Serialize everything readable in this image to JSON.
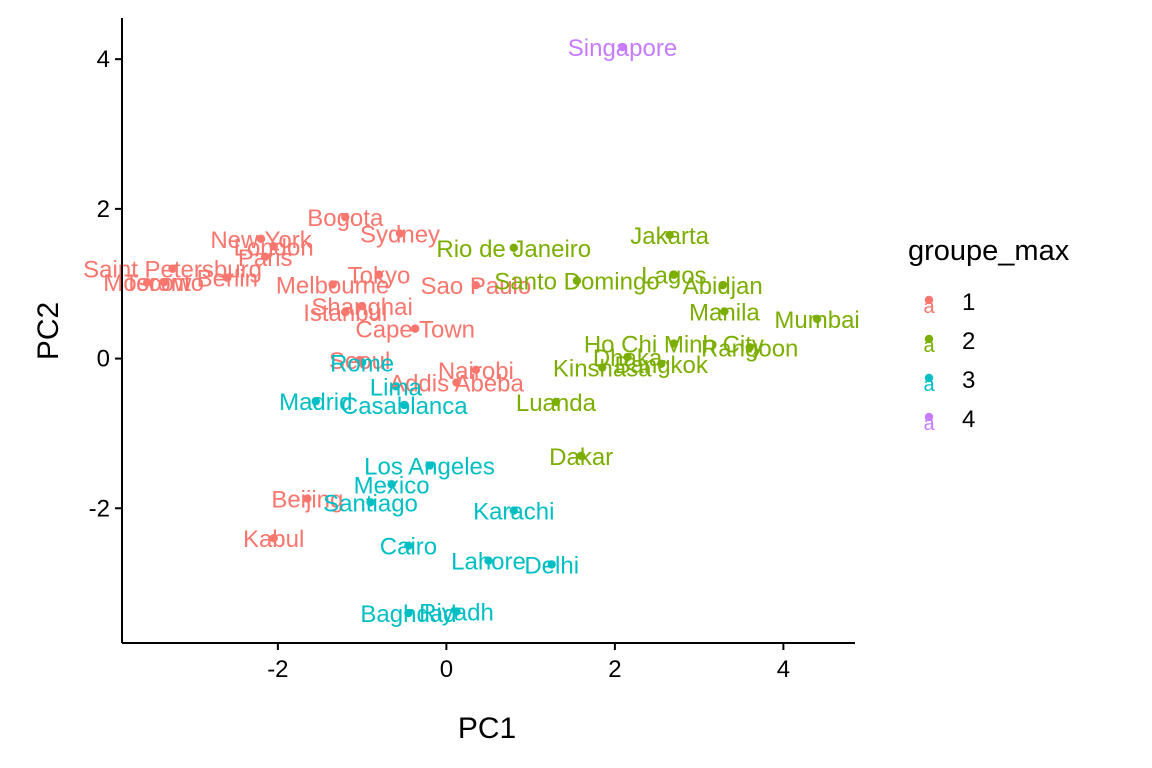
{
  "chart_data": {
    "type": "scatter",
    "xlabel": "PC1",
    "ylabel": "PC2",
    "xlim": [
      -3.85,
      4.85
    ],
    "ylim": [
      -3.8,
      4.55
    ],
    "xticks": [
      -2,
      0,
      2,
      4
    ],
    "yticks": [
      -2,
      0,
      2,
      4
    ],
    "xtick_labels": [
      "-2",
      "0",
      "2",
      "4"
    ],
    "ytick_labels": [
      "-2",
      "0",
      "2",
      "4"
    ],
    "grid": false,
    "legend_position": "right",
    "legend": {
      "title": "groupe_max",
      "entries": [
        {
          "group": "1",
          "color": "#F8766D"
        },
        {
          "group": "2",
          "color": "#7CAE00"
        },
        {
          "group": "3",
          "color": "#00BFC4"
        },
        {
          "group": "4",
          "color": "#C77CFF"
        }
      ]
    },
    "points": [
      {
        "label": "Singapore",
        "x": 2.09,
        "y": 4.16,
        "group": "4"
      },
      {
        "label": "Bogota",
        "x": -1.2,
        "y": 1.89,
        "group": "1"
      },
      {
        "label": "Sydney",
        "x": -0.55,
        "y": 1.67,
        "group": "1"
      },
      {
        "label": "New York",
        "x": -2.2,
        "y": 1.6,
        "group": "1"
      },
      {
        "label": "London",
        "x": -2.05,
        "y": 1.5,
        "group": "1"
      },
      {
        "label": "Paris",
        "x": -2.15,
        "y": 1.36,
        "group": "1"
      },
      {
        "label": "Saint Petersburg",
        "x": -3.25,
        "y": 1.2,
        "group": "1"
      },
      {
        "label": "Moscow",
        "x": -3.55,
        "y": 1.02,
        "group": "1"
      },
      {
        "label": "Toronto",
        "x": -3.35,
        "y": 1.02,
        "group": "1"
      },
      {
        "label": "Berlin",
        "x": -2.6,
        "y": 1.08,
        "group": "1"
      },
      {
        "label": "Tokyo",
        "x": -0.8,
        "y": 1.12,
        "group": "1"
      },
      {
        "label": "Melbourne",
        "x": -1.35,
        "y": 0.99,
        "group": "1"
      },
      {
        "label": "Sao Paulo",
        "x": 0.35,
        "y": 0.98,
        "group": "1"
      },
      {
        "label": "Shanghai",
        "x": -1.0,
        "y": 0.7,
        "group": "1"
      },
      {
        "label": "Istanbul",
        "x": -1.2,
        "y": 0.62,
        "group": "1"
      },
      {
        "label": "Cape Town",
        "x": -0.37,
        "y": 0.4,
        "group": "1"
      },
      {
        "label": "Seoul",
        "x": -1.03,
        "y": -0.02,
        "group": "1"
      },
      {
        "label": "Nairobi",
        "x": 0.35,
        "y": -0.15,
        "group": "1"
      },
      {
        "label": "Addis Abeba",
        "x": 0.12,
        "y": -0.32,
        "group": "1"
      },
      {
        "label": "Beijing",
        "x": -1.65,
        "y": -1.87,
        "group": "1"
      },
      {
        "label": "Kabul",
        "x": -2.05,
        "y": -2.4,
        "group": "1"
      },
      {
        "label": "Rio de Janeiro",
        "x": 0.8,
        "y": 1.48,
        "group": "2"
      },
      {
        "label": "Jakarta",
        "x": 2.65,
        "y": 1.65,
        "group": "2"
      },
      {
        "label": "Santo Domingo",
        "x": 1.55,
        "y": 1.04,
        "group": "2"
      },
      {
        "label": "Lagos",
        "x": 2.7,
        "y": 1.12,
        "group": "2"
      },
      {
        "label": "Abidjan",
        "x": 3.28,
        "y": 0.98,
        "group": "2"
      },
      {
        "label": "Manila",
        "x": 3.3,
        "y": 0.63,
        "group": "2"
      },
      {
        "label": "Mumbai",
        "x": 4.4,
        "y": 0.53,
        "group": "2"
      },
      {
        "label": "Ho Chi Minh City",
        "x": 2.7,
        "y": 0.2,
        "group": "2"
      },
      {
        "label": "Rangoon",
        "x": 3.6,
        "y": 0.15,
        "group": "2"
      },
      {
        "label": "Dhaka",
        "x": 2.15,
        "y": 0.02,
        "group": "2"
      },
      {
        "label": "Bangkok",
        "x": 2.55,
        "y": -0.07,
        "group": "2"
      },
      {
        "label": "Kinshasa",
        "x": 1.85,
        "y": -0.12,
        "group": "2"
      },
      {
        "label": "Luanda",
        "x": 1.3,
        "y": -0.58,
        "group": "2"
      },
      {
        "label": "Dakar",
        "x": 1.6,
        "y": -1.3,
        "group": "2"
      },
      {
        "label": "Rome",
        "x": -1.0,
        "y": -0.05,
        "group": "3"
      },
      {
        "label": "Lima",
        "x": -0.6,
        "y": -0.37,
        "group": "3"
      },
      {
        "label": "Madrid",
        "x": -1.55,
        "y": -0.57,
        "group": "3"
      },
      {
        "label": "Casablanca",
        "x": -0.5,
        "y": -0.62,
        "group": "3"
      },
      {
        "label": "Los Angeles",
        "x": -0.2,
        "y": -1.43,
        "group": "3"
      },
      {
        "label": "Mexico",
        "x": -0.65,
        "y": -1.68,
        "group": "3"
      },
      {
        "label": "Santiago",
        "x": -0.9,
        "y": -1.92,
        "group": "3"
      },
      {
        "label": "Karachi",
        "x": 0.8,
        "y": -2.03,
        "group": "3"
      },
      {
        "label": "Cairo",
        "x": -0.45,
        "y": -2.5,
        "group": "3"
      },
      {
        "label": "Lahore",
        "x": 0.5,
        "y": -2.7,
        "group": "3"
      },
      {
        "label": "Delhi",
        "x": 1.25,
        "y": -2.75,
        "group": "3"
      },
      {
        "label": "Baghdad",
        "x": -0.45,
        "y": -3.4,
        "group": "3"
      },
      {
        "label": "Riyadh",
        "x": 0.12,
        "y": -3.38,
        "group": "3"
      }
    ]
  }
}
